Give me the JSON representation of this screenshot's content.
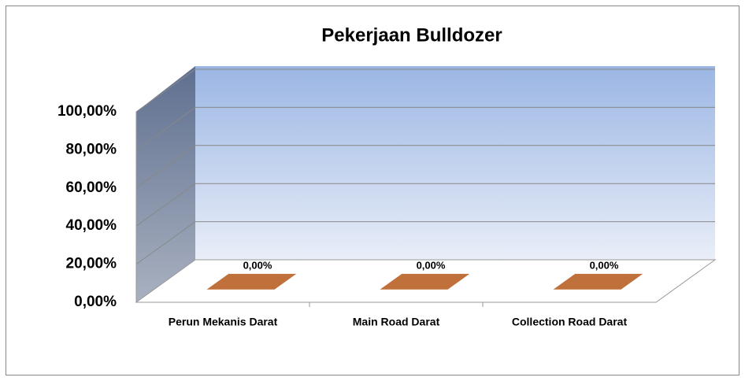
{
  "chart_data": {
    "type": "bar3d",
    "title": "Pekerjaan Bulldozer",
    "categories": [
      "Perun Mekanis Darat",
      "Main Road Darat",
      "Collection Road Darat"
    ],
    "values": [
      0,
      0,
      0
    ],
    "value_labels": [
      "0,00%",
      "0,00%",
      "0,00%"
    ],
    "color": "#c0703a",
    "ylim": [
      0,
      100
    ],
    "yticks": [
      {
        "value": 0,
        "label": "0,00%"
      },
      {
        "value": 20,
        "label": "20,00%"
      },
      {
        "value": 40,
        "label": "40,00%"
      },
      {
        "value": 60,
        "label": "60,00%"
      },
      {
        "value": 80,
        "label": "80,00%"
      },
      {
        "value": 100,
        "label": "100,00%"
      }
    ],
    "grid": true
  }
}
